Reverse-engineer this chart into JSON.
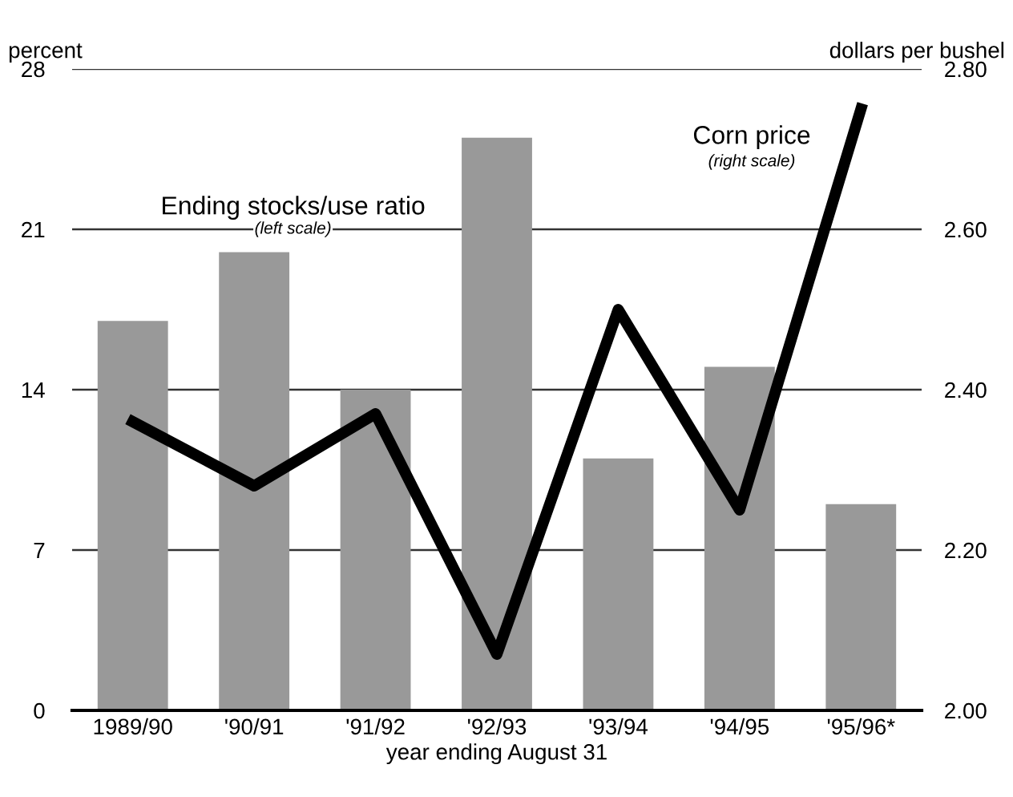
{
  "chart_data": {
    "type": "bar",
    "xlabel": "year ending August 31",
    "ylabel": "percent",
    "y2label": "dollars per bushel",
    "categories": [
      "1989/90",
      "'90/91",
      "'91/92",
      "'92/93",
      "'93/94",
      "'94/95",
      "'95/96*"
    ],
    "series": [
      {
        "name": "Ending stocks/use ratio",
        "color": "#999999",
        "values": [
          17,
          20,
          14,
          25,
          11,
          15,
          9
        ]
      },
      {
        "name": "Corn price",
        "type": "line",
        "axis": "y2",
        "color": "#000000",
        "values": [
          2.36,
          2.28,
          2.37,
          2.07,
          2.5,
          2.25,
          2.75
        ]
      }
    ],
    "annotations": [
      "(left scale)",
      "(right scale)"
    ],
    "ylim": [
      0,
      28
    ],
    "yticks": [
      0,
      7,
      14,
      21,
      28
    ],
    "y2lim": [
      2.0,
      2.8
    ],
    "y2ticks": [
      {
        "value": 2.0,
        "label": "2.00"
      },
      {
        "value": 2.2,
        "label": "2.20"
      },
      {
        "value": 2.4,
        "label": "2.40"
      },
      {
        "value": 2.6,
        "label": "2.60"
      },
      {
        "value": 2.8,
        "label": "2.80"
      }
    ],
    "grid": "y",
    "legend": false
  }
}
